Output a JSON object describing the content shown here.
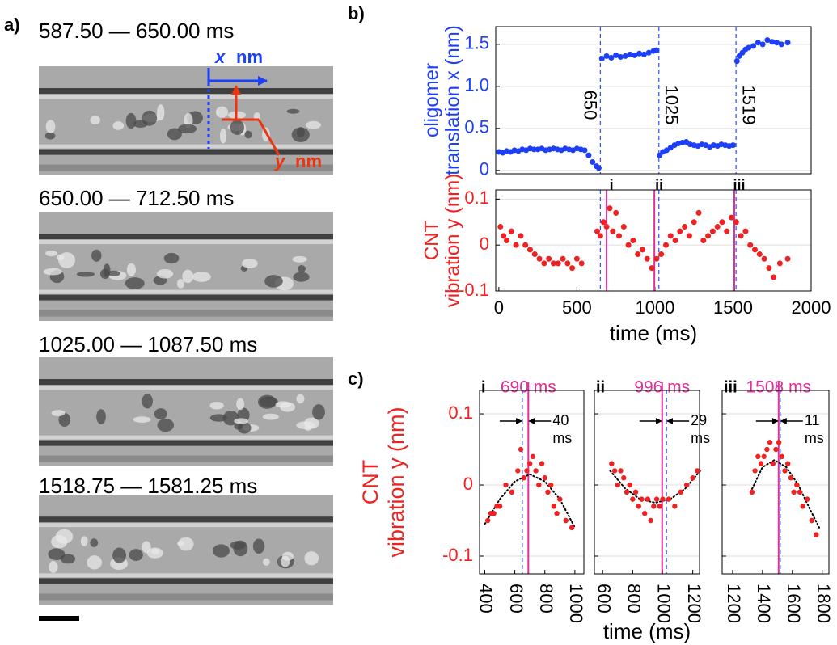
{
  "panel_a": {
    "label": "a)",
    "captions": [
      "587.50 — 650.00 ms",
      "650.00 — 712.50 ms",
      "1025.00 — 1087.50 ms",
      "1518.75 — 1581.25 ms"
    ],
    "x_label": "x",
    "x_unit": "nm",
    "y_label": "y",
    "y_unit": "nm"
  },
  "chart_data": [
    {
      "type": "scatter",
      "panel_label": "b)",
      "y_label": [
        "oligomer",
        "translation x (nm)"
      ],
      "color": "#1d3ff5",
      "x": [
        0,
        25,
        50,
        75,
        100,
        125,
        150,
        175,
        200,
        225,
        250,
        275,
        300,
        325,
        350,
        375,
        400,
        425,
        450,
        475,
        500,
        525,
        550,
        575,
        600,
        625,
        640,
        660,
        690,
        720,
        750,
        780,
        810,
        840,
        870,
        900,
        930,
        960,
        990,
        1010,
        1030,
        1050,
        1075,
        1100,
        1125,
        1150,
        1175,
        1200,
        1225,
        1250,
        1275,
        1300,
        1325,
        1350,
        1375,
        1400,
        1425,
        1450,
        1475,
        1500,
        1525,
        1540,
        1560,
        1580,
        1600,
        1630,
        1660,
        1690,
        1720,
        1750,
        1780,
        1810,
        1850
      ],
      "values": [
        0.22,
        0.21,
        0.23,
        0.22,
        0.24,
        0.23,
        0.25,
        0.24,
        0.26,
        0.25,
        0.25,
        0.26,
        0.24,
        0.25,
        0.26,
        0.25,
        0.24,
        0.26,
        0.25,
        0.24,
        0.26,
        0.25,
        0.24,
        0.18,
        0.1,
        0.05,
        0.03,
        1.33,
        1.36,
        1.34,
        1.37,
        1.35,
        1.36,
        1.38,
        1.37,
        1.39,
        1.38,
        1.4,
        1.42,
        1.43,
        0.18,
        0.22,
        0.24,
        0.27,
        0.3,
        0.32,
        0.33,
        0.34,
        0.31,
        0.3,
        0.29,
        0.31,
        0.3,
        0.28,
        0.3,
        0.29,
        0.31,
        0.3,
        0.29,
        0.3,
        1.3,
        1.36,
        1.4,
        1.44,
        1.46,
        1.48,
        1.52,
        1.5,
        1.55,
        1.53,
        1.52,
        1.5,
        1.52
      ],
      "xlim": [
        -20,
        2000
      ],
      "ylim": [
        -0.04,
        1.71
      ],
      "yticks": [
        0,
        0.5,
        {
          "value": 1,
          "label": "1.0"
        },
        1.5
      ],
      "grid": true,
      "event_lines": [
        650,
        1025,
        1519
      ],
      "event_line_color": "#2a4fff"
    },
    {
      "type": "scatter",
      "y_label": [
        "CNT",
        "vibration y (nm)"
      ],
      "x_label": "time (ms)",
      "color": "#ee2222",
      "x": [
        10,
        30,
        50,
        80,
        110,
        140,
        170,
        200,
        230,
        260,
        290,
        320,
        350,
        380,
        410,
        440,
        470,
        500,
        530,
        630,
        650,
        670,
        690,
        710,
        730,
        750,
        770,
        800,
        830,
        860,
        890,
        920,
        950,
        980,
        1010,
        1040,
        1070,
        1100,
        1130,
        1160,
        1190,
        1220,
        1250,
        1280,
        1310,
        1340,
        1370,
        1400,
        1430,
        1460,
        1490,
        1520,
        1550,
        1580,
        1610,
        1640,
        1670,
        1700,
        1730,
        1760,
        1800,
        1850
      ],
      "values": [
        0.04,
        0.02,
        0.01,
        0.03,
        0.0,
        0.02,
        0.0,
        -0.01,
        -0.02,
        -0.03,
        -0.04,
        -0.03,
        -0.04,
        -0.04,
        -0.03,
        -0.04,
        -0.05,
        -0.03,
        -0.04,
        0.03,
        0.02,
        0.05,
        0.04,
        0.08,
        0.03,
        0.07,
        0.02,
        0.04,
        0.0,
        0.01,
        -0.02,
        -0.01,
        -0.03,
        -0.05,
        -0.03,
        -0.02,
        0.0,
        0.02,
        0.01,
        0.03,
        0.04,
        0.02,
        0.05,
        0.07,
        0.01,
        0.02,
        0.03,
        0.04,
        0.05,
        0.03,
        0.06,
        0.05,
        0.02,
        0.03,
        0.0,
        -0.01,
        -0.02,
        -0.03,
        -0.05,
        -0.07,
        -0.04,
        -0.03
      ],
      "xlim": [
        -20,
        2000
      ],
      "ylim": [
        -0.1,
        0.12
      ],
      "xticks": [
        0,
        500,
        1000,
        1500,
        2000
      ],
      "yticks": [
        0.1,
        0,
        -0.1
      ],
      "grid": true,
      "event_lines": [
        650,
        1025,
        1519
      ],
      "event_line_color": "#2a4fff",
      "markers": [
        {
          "x": 690,
          "label": "i"
        },
        {
          "x": 996,
          "label": "ii"
        },
        {
          "x": 1508,
          "label": "iii"
        }
      ],
      "marker_color": "#e0309a"
    },
    {
      "type": "scatter",
      "panel_label": "c)",
      "roman": "i",
      "y_label": [
        "CNT",
        "vibration y (nm)"
      ],
      "color": "#ee2222",
      "x": [
        420,
        440,
        460,
        480,
        500,
        540,
        580,
        620,
        640,
        660,
        680,
        700,
        720,
        740,
        760,
        780,
        800,
        820,
        840,
        860,
        880,
        900,
        940,
        980
      ],
      "values": [
        -0.05,
        -0.04,
        -0.04,
        -0.03,
        -0.03,
        0.0,
        -0.01,
        0.02,
        0.05,
        0.01,
        0.02,
        0.03,
        0.04,
        0.02,
        0.0,
        0.03,
        0.01,
        -0.01,
        0.0,
        -0.03,
        -0.04,
        -0.02,
        -0.05,
        -0.06
      ],
      "fit": {
        "x": [
          400,
          500,
          600,
          700,
          800,
          900,
          1000
        ],
        "values": [
          -0.055,
          -0.02,
          0.005,
          0.015,
          0.005,
          -0.02,
          -0.06
        ],
        "color": "#000000"
      },
      "xlim": [
        365,
        1060
      ],
      "ylim": [
        -0.125,
        0.133
      ],
      "xticks": [
        400,
        600,
        800,
        1000
      ],
      "yticks": [
        0.1,
        0,
        -0.1
      ],
      "show_ytick_labels": true,
      "grid": true,
      "event_line": 650,
      "event_line_color": "#2a4fff",
      "marker": {
        "x": 690,
        "label": "690 ms"
      },
      "marker_color": "#e0309a",
      "gap_label": [
        "40",
        "ms"
      ]
    },
    {
      "type": "scatter",
      "roman": "ii",
      "x_label": "time (ms)",
      "color": "#ee2222",
      "x": [
        660,
        680,
        700,
        720,
        740,
        760,
        780,
        800,
        820,
        840,
        860,
        880,
        900,
        920,
        940,
        960,
        980,
        1000,
        1040,
        1080,
        1120,
        1160,
        1200,
        1230
      ],
      "values": [
        0.03,
        0.02,
        0.0,
        0.02,
        0.01,
        -0.01,
        0.0,
        -0.02,
        -0.01,
        -0.03,
        -0.02,
        -0.04,
        -0.02,
        -0.05,
        -0.03,
        -0.02,
        -0.03,
        -0.02,
        -0.02,
        -0.03,
        -0.01,
        0.0,
        0.01,
        0.02
      ],
      "fit": {
        "x": [
          650,
          750,
          850,
          950,
          1050,
          1150,
          1250
        ],
        "values": [
          0.02,
          -0.005,
          -0.02,
          -0.025,
          -0.02,
          -0.005,
          0.02
        ],
        "color": "#000000"
      },
      "xlim": [
        545,
        1245
      ],
      "ylim": [
        -0.125,
        0.133
      ],
      "xticks": [
        600,
        800,
        1000,
        1200
      ],
      "yticks": [
        0.1,
        0,
        -0.1
      ],
      "show_ytick_labels": false,
      "grid": true,
      "event_line": 1025,
      "event_line_color": "#2a4fff",
      "marker": {
        "x": 996,
        "label": "996 ms"
      },
      "marker_color": "#e0309a",
      "gap_label": [
        "29",
        "ms"
      ]
    },
    {
      "type": "scatter",
      "roman": "iii",
      "color": "#ee2222",
      "x": [
        1330,
        1350,
        1370,
        1390,
        1410,
        1430,
        1450,
        1470,
        1490,
        1510,
        1530,
        1550,
        1570,
        1590,
        1610,
        1630,
        1650,
        1670,
        1700,
        1730,
        1760
      ],
      "values": [
        -0.01,
        0.02,
        0.04,
        0.03,
        0.04,
        0.05,
        0.06,
        0.03,
        0.05,
        0.06,
        0.04,
        0.02,
        0.03,
        0.01,
        -0.01,
        0.0,
        -0.01,
        -0.03,
        -0.02,
        -0.05,
        -0.07
      ],
      "fit": {
        "x": [
          1320,
          1400,
          1480,
          1560,
          1640,
          1720,
          1780
        ],
        "values": [
          -0.01,
          0.025,
          0.035,
          0.025,
          0.0,
          -0.035,
          -0.06
        ],
        "color": "#000000"
      },
      "xlim": [
        1130,
        1845
      ],
      "ylim": [
        -0.125,
        0.133
      ],
      "xticks": [
        1200,
        1400,
        1600,
        1800
      ],
      "yticks": [
        0.1,
        0,
        -0.1
      ],
      "show_ytick_labels": false,
      "grid": true,
      "event_line": 1519,
      "event_line_color": "#2a4fff",
      "marker": {
        "x": 1508,
        "label": "1508 ms"
      },
      "marker_color": "#e0309a",
      "gap_label": [
        "11",
        "ms"
      ]
    }
  ]
}
